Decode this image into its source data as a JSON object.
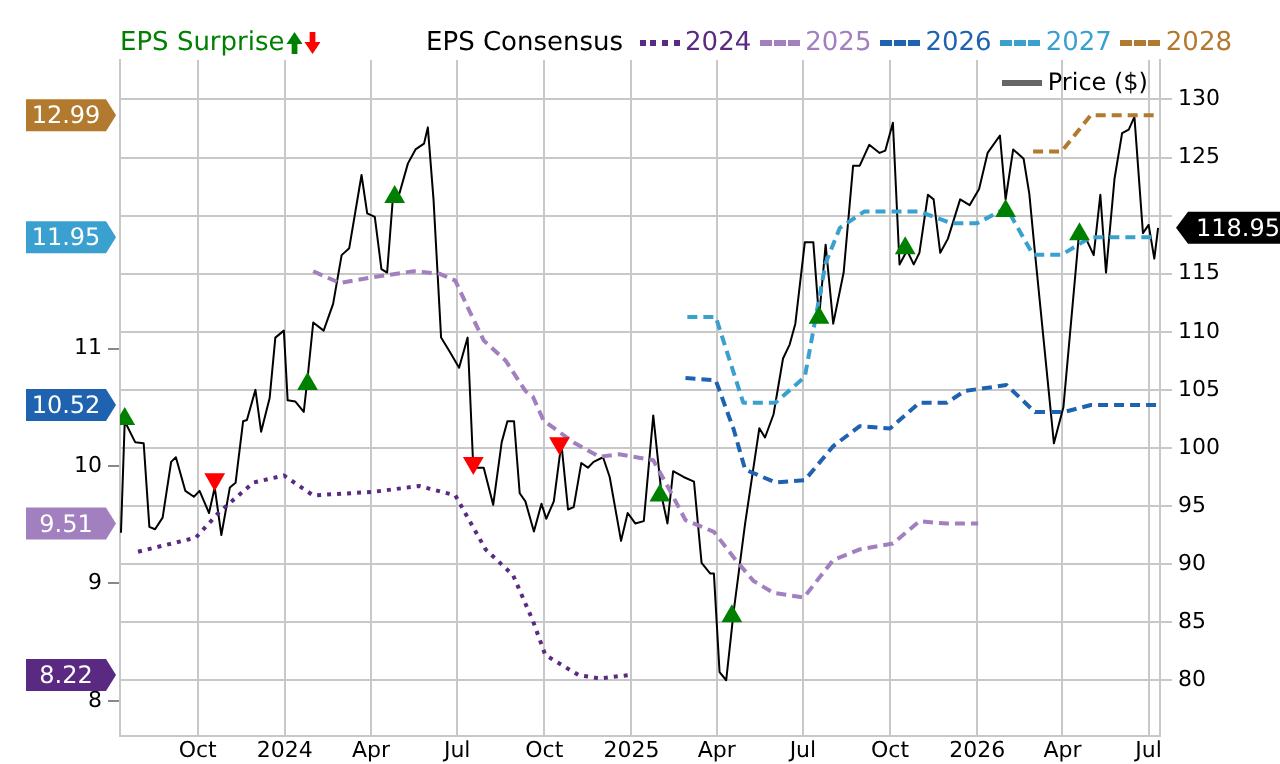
{
  "chart_data": {
    "type": "line",
    "legend_title": "EPS Consensus",
    "xlim": [
      "2023-07-11",
      "2026-07-13"
    ],
    "annotations": [
      "8.22",
      "9.51",
      "10.52",
      "11.95",
      "12.99"
    ],
    "xticks": [
      {
        "value": "2023-10-01",
        "label": "Oct"
      },
      {
        "value": "2024-01-01",
        "label": "2024"
      },
      {
        "value": "2024-04-01",
        "label": "Apr"
      },
      {
        "value": "2024-07-01",
        "label": "Jul"
      },
      {
        "value": "2024-10-01",
        "label": "Oct"
      },
      {
        "value": "2025-01-01",
        "label": "2025"
      },
      {
        "value": "2025-04-01",
        "label": "Apr"
      },
      {
        "value": "2025-07-01",
        "label": "Jul"
      },
      {
        "value": "2025-10-01",
        "label": "Oct"
      },
      {
        "value": "2026-01-01",
        "label": "2026"
      },
      {
        "value": "2026-04-01",
        "label": "Apr"
      },
      {
        "value": "2026-07-01",
        "label": "Jul"
      }
    ],
    "ylim": [
      7.7,
      13.46
    ],
    "yticks": [
      8,
      9,
      10,
      11
    ],
    "y2lim": [
      75.2,
      133.4
    ],
    "y2ticks": [
      80,
      85,
      90,
      95,
      100,
      105,
      110,
      115,
      {
        "value": 120,
        "label": null
      },
      125,
      130
    ],
    "grid": true,
    "legend": "top",
    "marker": "none",
    "series": [
      {
        "name": "2024",
        "color": "#5a2a82",
        "line_style": "dotted",
        "x": [
          "2023-07-30",
          "2023-09-29",
          "2023-10-24",
          "2023-11-29",
          "2023-12-31",
          "2024-01-31",
          "2024-04-03",
          "2024-05-22",
          "2024-06-29",
          "2024-07-31",
          "2024-08-29",
          "2024-09-19",
          "2024-10-02",
          "2024-11-06",
          "2024-11-28",
          "2024-12-30"
        ],
        "values": [
          9.27,
          9.39,
          9.61,
          9.86,
          9.92,
          9.75,
          9.78,
          9.83,
          9.75,
          9.29,
          9.07,
          8.68,
          8.39,
          8.22,
          8.19,
          8.22
        ]
      },
      {
        "name": "2025",
        "color": "#a27fbf",
        "line_style": "dashed",
        "x": [
          "2024-01-31",
          "2024-02-28",
          "2024-04-03",
          "2024-05-16",
          "2024-06-12",
          "2024-06-29",
          "2024-07-14",
          "2024-07-29",
          "2024-08-21",
          "2024-09-11",
          "2024-09-19",
          "2024-09-30",
          "2024-11-01",
          "2024-11-28",
          "2024-12-19",
          "2025-01-24",
          "2025-02-10",
          "2025-02-27",
          "2025-03-29",
          "2025-04-22",
          "2025-05-10",
          "2025-05-31",
          "2025-07-02",
          "2025-08-02",
          "2025-08-30",
          "2025-10-04",
          "2025-11-01",
          "2025-11-30",
          "2026-01-02"
        ],
        "values": [
          11.66,
          11.56,
          11.61,
          11.66,
          11.64,
          11.58,
          11.32,
          11.07,
          10.9,
          10.64,
          10.59,
          10.39,
          10.2,
          10.08,
          10.1,
          10.05,
          9.8,
          9.54,
          9.44,
          9.19,
          9.02,
          8.92,
          8.88,
          9.2,
          9.29,
          9.34,
          9.53,
          9.51,
          9.51
        ]
      },
      {
        "name": "2026",
        "color": "#1e62b0",
        "line_style": "dashed",
        "x": [
          "2025-02-27",
          "2025-03-31",
          "2025-04-19",
          "2025-05-01",
          "2025-06-02",
          "2025-07-03",
          "2025-08-02",
          "2025-08-30",
          "2025-10-01",
          "2025-11-01",
          "2025-11-30",
          "2025-12-19",
          "2026-02-01",
          "2026-03-03",
          "2026-04-02",
          "2026-05-01",
          "2026-07-09"
        ],
        "values": [
          10.75,
          10.73,
          10.31,
          9.97,
          9.86,
          9.88,
          10.17,
          10.34,
          10.32,
          10.54,
          10.54,
          10.64,
          10.69,
          10.46,
          10.46,
          10.52,
          10.52
        ]
      },
      {
        "name": "2027",
        "color": "#3aa0cf",
        "line_style": "dashed",
        "x": [
          "2025-03-01",
          "2025-03-31",
          "2025-04-29",
          "2025-06-02",
          "2025-07-03",
          "2025-07-25",
          "2025-08-09",
          "2025-09-04",
          "2025-11-01",
          "2025-12-04",
          "2026-01-01",
          "2026-02-01",
          "2026-03-01",
          "2026-03-31",
          "2026-05-01",
          "2026-07-09"
        ],
        "values": [
          11.27,
          11.27,
          10.54,
          10.54,
          10.76,
          11.73,
          12.03,
          12.17,
          12.17,
          12.07,
          12.07,
          12.2,
          11.8,
          11.8,
          11.95,
          11.95
        ]
      },
      {
        "name": "2028",
        "color": "#b27a2e",
        "line_style": "dashed",
        "x": [
          "2026-03-01",
          "2026-03-31",
          "2026-05-01",
          "2026-07-09"
        ],
        "values": [
          12.68,
          12.68,
          12.99,
          12.99
        ]
      },
      {
        "name": "Price ($)",
        "color": "#000000",
        "line_style": "solid",
        "axis": "y2",
        "x": [
          "2023-07-12",
          "2023-07-16",
          "2023-07-27",
          "2023-08-05",
          "2023-08-11",
          "2023-08-17",
          "2023-08-25",
          "2023-09-03",
          "2023-09-08",
          "2023-09-18",
          "2023-09-27",
          "2023-10-03",
          "2023-10-13",
          "2023-10-19",
          "2023-10-26",
          "2023-11-04",
          "2023-11-10",
          "2023-11-18",
          "2023-11-22",
          "2023-12-01",
          "2023-12-07",
          "2023-12-16",
          "2023-12-22",
          "2023-12-31",
          "2024-01-04",
          "2024-01-12",
          "2024-01-21",
          "2024-01-25",
          "2024-01-31",
          "2024-02-11",
          "2024-02-21",
          "2024-03-01",
          "2024-03-09",
          "2024-03-22",
          "2024-03-28",
          "2024-04-05",
          "2024-04-12",
          "2024-04-18",
          "2024-04-24",
          "2024-05-01",
          "2024-05-10",
          "2024-05-18",
          "2024-05-27",
          "2024-05-31",
          "2024-06-06",
          "2024-06-14",
          "2024-06-23",
          "2024-07-03",
          "2024-07-12",
          "2024-07-18",
          "2024-07-29",
          "2024-08-08",
          "2024-08-17",
          "2024-08-23",
          "2024-08-30",
          "2024-09-05",
          "2024-09-11",
          "2024-09-20",
          "2024-09-28",
          "2024-10-03",
          "2024-10-11",
          "2024-10-19",
          "2024-10-26",
          "2024-11-01",
          "2024-11-09",
          "2024-11-16",
          "2024-11-22",
          "2024-12-02",
          "2024-12-09",
          "2024-12-21",
          "2024-12-28",
          "2025-01-05",
          "2025-01-14",
          "2025-01-24",
          "2025-02-02",
          "2025-02-08",
          "2025-02-14",
          "2025-02-25",
          "2025-03-08",
          "2025-03-16",
          "2025-03-25",
          "2025-03-29",
          "2025-04-04",
          "2025-04-11",
          "2025-04-19",
          "2025-05-01",
          "2025-05-16",
          "2025-05-22",
          "2025-05-31",
          "2025-06-10",
          "2025-06-17",
          "2025-06-23",
          "2025-07-03",
          "2025-07-12",
          "2025-07-18",
          "2025-07-25",
          "2025-08-02",
          "2025-08-13",
          "2025-08-23",
          "2025-08-30",
          "2025-09-09",
          "2025-09-20",
          "2025-09-26",
          "2025-10-04",
          "2025-10-11",
          "2025-10-19",
          "2025-10-26",
          "2025-11-01",
          "2025-11-10",
          "2025-11-16",
          "2025-11-23",
          "2025-12-01",
          "2025-12-14",
          "2025-12-24",
          "2026-01-03",
          "2026-01-12",
          "2026-01-25",
          "2026-01-31",
          "2026-02-08",
          "2026-02-19",
          "2026-02-25",
          "2026-03-03",
          "2026-03-23",
          "2026-04-02",
          "2026-04-19",
          "2026-04-26",
          "2026-05-04",
          "2026-05-11",
          "2026-05-17",
          "2026-05-26",
          "2026-06-03",
          "2026-06-10",
          "2026-06-16",
          "2026-06-25",
          "2026-07-01",
          "2026-07-07",
          "2026-07-11"
        ],
        "values": [
          92.7,
          102.3,
          100.5,
          100.4,
          93.2,
          93.0,
          94.0,
          98.8,
          99.2,
          96.3,
          95.8,
          96.3,
          94.4,
          96.6,
          92.5,
          96.6,
          97.0,
          102.3,
          102.4,
          105.0,
          101.4,
          104.3,
          109.5,
          110.1,
          104.1,
          104.0,
          103.1,
          106.0,
          110.8,
          110.1,
          112.4,
          116.6,
          117.2,
          123.5,
          120.2,
          119.9,
          115.4,
          115.1,
          121.4,
          121.9,
          124.5,
          125.7,
          126.2,
          127.6,
          121.4,
          109.5,
          108.3,
          106.9,
          109.5,
          98.3,
          98.3,
          95.1,
          100.5,
          102.3,
          102.3,
          96.1,
          95.4,
          92.8,
          95.2,
          93.9,
          95.4,
          100.4,
          94.7,
          94.9,
          98.7,
          98.3,
          98.8,
          99.2,
          97.5,
          92.0,
          94.4,
          93.5,
          93.7,
          102.8,
          95.8,
          93.5,
          98.0,
          97.5,
          97.1,
          90.1,
          89.2,
          89.2,
          80.7,
          80.0,
          86.0,
          93.5,
          101.7,
          100.9,
          102.9,
          107.7,
          108.9,
          110.7,
          117.7,
          117.7,
          111.2,
          117.5,
          110.7,
          115.1,
          124.3,
          124.3,
          126.1,
          125.4,
          125.6,
          128.0,
          115.8,
          117.0,
          115.8,
          116.8,
          121.8,
          121.4,
          116.8,
          118.0,
          121.4,
          120.9,
          122.3,
          125.4,
          126.9,
          121.4,
          125.7,
          124.9,
          121.9,
          116.8,
          100.4,
          103.5,
          118.9,
          118.0,
          116.6,
          121.8,
          115.1,
          123.2,
          127.1,
          127.4,
          128.5,
          118.5,
          119.2,
          116.3,
          118.95
        ],
        "value_labels": [
          null,
          null,
          null,
          null,
          null,
          null,
          null,
          null,
          null,
          null,
          null,
          null,
          null,
          null,
          null,
          null,
          null,
          null,
          null,
          null,
          null,
          null,
          null,
          null,
          null,
          null,
          null,
          null,
          null,
          null,
          null,
          null,
          null,
          null,
          null,
          null,
          null,
          null,
          null,
          null,
          null,
          null,
          null,
          null,
          null,
          null,
          null,
          null,
          null,
          null,
          null,
          null,
          null,
          null,
          null,
          null,
          null,
          null,
          null,
          null,
          null,
          null,
          null,
          null,
          null,
          null,
          null,
          null,
          null,
          null,
          null,
          null,
          null,
          null,
          null,
          null,
          null,
          null,
          null,
          null,
          null,
          null,
          null,
          null,
          null,
          null,
          null,
          null,
          null,
          null,
          null,
          null,
          null,
          null,
          null,
          null,
          null,
          null,
          null,
          null,
          null,
          null,
          null,
          null,
          null,
          null,
          null,
          null,
          null,
          null,
          null,
          null,
          null,
          null,
          null,
          null,
          null,
          null,
          null,
          null,
          null,
          null,
          null,
          null,
          null,
          null,
          null,
          null,
          null,
          null,
          null,
          null,
          null,
          null,
          null,
          null,
          "118.95"
        ]
      },
      {
        "name": "EPS Surprise",
        "type": "scatter",
        "marker": "triangle",
        "axis": "y2",
        "color": "#008000",
        "x": [
          "2023-07-16",
          "2024-01-25",
          "2024-04-26",
          "2025-01-31",
          "2025-04-17",
          "2025-07-18",
          "2025-10-17",
          "2026-01-31",
          "2026-04-19"
        ],
        "values": [
          102.5,
          105.5,
          121.6,
          95.9,
          85.5,
          111.2,
          117.2,
          120.4,
          118.4
        ]
      },
      {
        "type": "scatter",
        "marker": "triangle",
        "axis": "y2",
        "color": "#ff0000",
        "x": [
          "2023-10-19",
          "2024-07-18",
          "2024-10-17"
        ],
        "values": [
          97.3,
          98.7,
          100.4
        ]
      }
    ]
  }
}
